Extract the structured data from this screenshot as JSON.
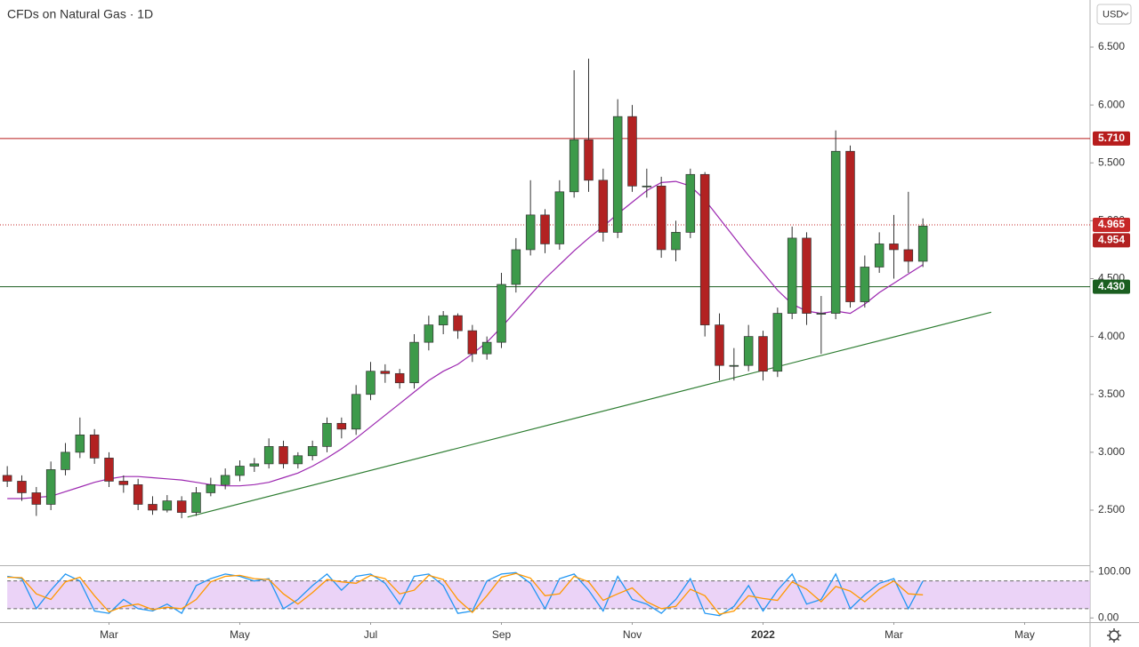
{
  "chart_data": [
    {
      "type": "candlestick",
      "title": "CFDs on Natural Gas · 1D",
      "currency": "USD",
      "up_color": "#3d9a4a",
      "down_color": "#b22222",
      "wick_color": "#333333",
      "xlim": [
        -0.5,
        74.5
      ],
      "xticks": [
        {
          "value": 7,
          "label": "Mar"
        },
        {
          "value": 16,
          "label": "May"
        },
        {
          "value": 25,
          "label": "Jul"
        },
        {
          "value": 34,
          "label": "Sep"
        },
        {
          "value": 43,
          "label": "Nov"
        },
        {
          "value": 52,
          "label": "2022"
        },
        {
          "value": 61,
          "label": "Mar"
        },
        {
          "value": 70,
          "label": "May"
        }
      ],
      "ylim": [
        2.024,
        6.907
      ],
      "yticks": [
        {
          "value": 2.5,
          "label": "2.500"
        },
        {
          "value": 3.0,
          "label": "3.000"
        },
        {
          "value": 3.5,
          "label": "3.500"
        },
        {
          "value": 4.0,
          "label": "4.000"
        },
        {
          "value": 4.5,
          "label": "4.500"
        },
        {
          "value": 5.0,
          "label": "5.000"
        },
        {
          "value": 5.5,
          "label": "5.500"
        },
        {
          "value": 6.0,
          "label": "6.000"
        },
        {
          "value": 6.5,
          "label": "6.500"
        }
      ],
      "open": [
        2.8,
        2.75,
        2.65,
        2.55,
        2.85,
        3.0,
        3.15,
        2.95,
        2.75,
        2.72,
        2.55,
        2.5,
        2.58,
        2.48,
        2.65,
        2.72,
        2.8,
        2.88,
        2.9,
        3.05,
        2.9,
        2.97,
        3.05,
        3.25,
        3.2,
        3.5,
        3.7,
        3.68,
        3.6,
        3.95,
        4.1,
        4.18,
        4.05,
        3.85,
        3.95,
        4.45,
        4.75,
        5.05,
        4.8,
        5.25,
        5.7,
        5.35,
        4.9,
        5.9,
        5.3,
        5.3,
        4.75,
        4.9,
        5.4,
        4.1,
        3.75,
        3.75,
        4.0,
        3.7,
        4.2,
        4.85,
        4.2,
        4.2,
        5.6,
        4.3,
        4.6,
        4.8,
        4.75,
        4.65
      ],
      "high": [
        2.88,
        2.8,
        2.7,
        2.92,
        3.08,
        3.3,
        3.2,
        3.0,
        2.8,
        2.77,
        2.62,
        2.63,
        2.62,
        2.7,
        2.78,
        2.86,
        2.93,
        2.95,
        3.12,
        3.1,
        3.0,
        3.1,
        3.3,
        3.3,
        3.58,
        3.78,
        3.76,
        3.72,
        4.02,
        4.18,
        4.22,
        4.2,
        4.1,
        4.0,
        4.55,
        4.85,
        5.35,
        5.1,
        5.35,
        6.3,
        6.4,
        5.45,
        6.05,
        6.0,
        5.45,
        5.38,
        5.0,
        5.45,
        5.42,
        4.2,
        3.9,
        4.1,
        4.05,
        4.25,
        4.95,
        4.9,
        4.35,
        5.78,
        5.65,
        4.7,
        4.9,
        5.05,
        5.25,
        5.02
      ],
      "low": [
        2.7,
        2.58,
        2.45,
        2.5,
        2.8,
        2.95,
        2.9,
        2.7,
        2.65,
        2.5,
        2.46,
        2.48,
        2.43,
        2.45,
        2.62,
        2.68,
        2.75,
        2.83,
        2.86,
        2.86,
        2.86,
        2.93,
        3.0,
        3.12,
        3.15,
        3.45,
        3.6,
        3.55,
        3.55,
        3.88,
        4.02,
        3.98,
        3.78,
        3.8,
        3.9,
        4.38,
        4.7,
        4.72,
        4.75,
        5.2,
        5.25,
        4.82,
        4.85,
        5.25,
        5.2,
        4.68,
        4.65,
        4.85,
        4.0,
        3.62,
        3.62,
        3.7,
        3.62,
        3.65,
        4.15,
        4.1,
        3.85,
        4.15,
        4.25,
        4.25,
        4.55,
        4.5,
        4.55,
        4.6
      ],
      "close": [
        2.75,
        2.65,
        2.55,
        2.85,
        3.0,
        3.15,
        2.95,
        2.75,
        2.72,
        2.55,
        2.5,
        2.58,
        2.48,
        2.65,
        2.72,
        2.8,
        2.88,
        2.9,
        3.05,
        2.9,
        2.97,
        3.05,
        3.25,
        3.2,
        3.5,
        3.7,
        3.68,
        3.6,
        3.95,
        4.1,
        4.18,
        4.05,
        3.85,
        3.95,
        4.45,
        4.75,
        5.05,
        4.8,
        5.25,
        5.7,
        5.35,
        4.9,
        5.9,
        5.3,
        5.3,
        4.75,
        4.9,
        5.4,
        4.1,
        3.75,
        3.75,
        4.0,
        3.7,
        4.2,
        4.85,
        4.2,
        4.2,
        5.6,
        4.3,
        4.6,
        4.8,
        4.75,
        4.65,
        4.954
      ],
      "ma": {
        "color": "#9c27b0",
        "values": [
          2.6,
          2.6,
          2.61,
          2.62,
          2.66,
          2.7,
          2.74,
          2.77,
          2.79,
          2.79,
          2.78,
          2.77,
          2.76,
          2.74,
          2.72,
          2.71,
          2.71,
          2.72,
          2.74,
          2.78,
          2.82,
          2.88,
          2.95,
          3.03,
          3.12,
          3.22,
          3.32,
          3.42,
          3.52,
          3.62,
          3.7,
          3.76,
          3.85,
          3.95,
          4.08,
          4.22,
          4.36,
          4.5,
          4.62,
          4.74,
          4.85,
          4.95,
          5.06,
          5.16,
          5.26,
          5.33,
          5.34,
          5.3,
          5.18,
          5.02,
          4.86,
          4.7,
          4.55,
          4.4,
          4.28,
          4.22,
          4.2,
          4.22,
          4.2,
          4.28,
          4.38,
          4.46,
          4.54,
          4.62
        ]
      },
      "trendline": {
        "color": "#2e7d32",
        "x": [
          12.4,
          67.7
        ],
        "values": [
          2.44,
          4.21
        ]
      },
      "levels": [
        {
          "value": 5.71,
          "label": "5.710",
          "color": "#b71c1c",
          "dotted": false
        },
        {
          "value": 4.965,
          "label": "4.965",
          "color": "#c62828",
          "dotted": true
        },
        {
          "value": 4.43,
          "label": "4.430",
          "color": "#1b5e20",
          "dotted": false
        }
      ]
    },
    {
      "type": "line",
      "ylim": [
        -9,
        112
      ],
      "yticks": [
        {
          "value": 100,
          "label": "100.00"
        },
        {
          "value": 0,
          "label": "0.00"
        }
      ],
      "band": [
        20,
        80
      ],
      "band_color": "#e6c8f5",
      "series": [
        {
          "color": "#2196f3",
          "values": [
            90,
            85,
            20,
            60,
            95,
            80,
            15,
            10,
            40,
            20,
            15,
            30,
            10,
            70,
            85,
            95,
            90,
            80,
            85,
            20,
            40,
            70,
            95,
            60,
            90,
            95,
            75,
            30,
            90,
            95,
            70,
            10,
            15,
            80,
            95,
            98,
            75,
            20,
            85,
            95,
            60,
            15,
            90,
            40,
            30,
            10,
            40,
            85,
            10,
            5,
            25,
            70,
            15,
            60,
            95,
            30,
            40,
            95,
            20,
            50,
            75,
            85,
            20,
            80
          ]
        },
        {
          "color": "#ff9800",
          "values": [
            88,
            87,
            52,
            40,
            78,
            88,
            48,
            13,
            25,
            30,
            18,
            23,
            20,
            40,
            78,
            90,
            92,
            85,
            83,
            52,
            30,
            55,
            83,
            78,
            75,
            92,
            85,
            52,
            60,
            92,
            83,
            40,
            12,
            48,
            88,
            96,
            86,
            48,
            52,
            90,
            78,
            38,
            52,
            65,
            35,
            20,
            25,
            62,
            48,
            8,
            15,
            48,
            42,
            38,
            78,
            62,
            35,
            68,
            58,
            35,
            62,
            80,
            52,
            50
          ]
        }
      ]
    }
  ]
}
